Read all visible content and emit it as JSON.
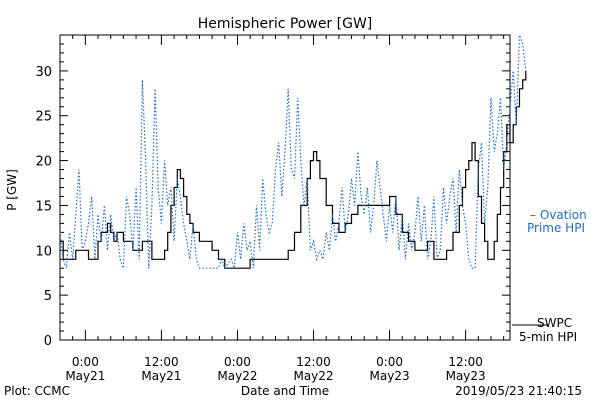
{
  "chart_data": {
    "type": "line",
    "title": "Hemispheric Power [GW]",
    "ylabel": "P [GW]",
    "xlabel": "Date and Time",
    "ylim": [
      0,
      34
    ],
    "yticks": [
      0,
      5,
      10,
      15,
      20,
      25,
      30
    ],
    "xlim": [
      -4,
      67
    ],
    "xticks": [
      {
        "hour": 0,
        "time": "0:00",
        "date": "May21"
      },
      {
        "hour": 12,
        "time": "12:00",
        "date": "May21"
      },
      {
        "hour": 24,
        "time": "0:00",
        "date": "May22"
      },
      {
        "hour": 36,
        "time": "12:00",
        "date": "May22"
      },
      {
        "hour": 48,
        "time": "0:00",
        "date": "May23"
      },
      {
        "hour": 60,
        "time": "12:00",
        "date": "May23"
      }
    ],
    "series": [
      {
        "name": "SWPC 5-min HPI",
        "color": "#000000",
        "style": "solid-step",
        "points": [
          [
            -4,
            11
          ],
          [
            -3.5,
            9
          ],
          [
            -2,
            9
          ],
          [
            -1.5,
            10
          ],
          [
            0,
            10
          ],
          [
            0.5,
            9
          ],
          [
            1.5,
            9
          ],
          [
            2,
            11
          ],
          [
            2.5,
            12
          ],
          [
            3.5,
            13
          ],
          [
            4,
            12
          ],
          [
            4.5,
            11
          ],
          [
            5,
            12
          ],
          [
            6,
            11
          ],
          [
            7,
            11
          ],
          [
            7.5,
            10
          ],
          [
            8.5,
            10
          ],
          [
            9,
            11
          ],
          [
            10,
            11
          ],
          [
            10.5,
            9
          ],
          [
            11,
            9
          ],
          [
            12.5,
            10
          ],
          [
            13,
            12
          ],
          [
            13.5,
            15
          ],
          [
            14,
            17
          ],
          [
            14.5,
            19
          ],
          [
            15,
            18
          ],
          [
            15.5,
            16
          ],
          [
            16,
            14
          ],
          [
            16.5,
            13
          ],
          [
            17,
            12
          ],
          [
            18,
            11
          ],
          [
            19,
            11
          ],
          [
            20,
            10
          ],
          [
            21,
            9
          ],
          [
            22,
            8
          ],
          [
            24,
            8
          ],
          [
            25,
            8
          ],
          [
            26,
            9
          ],
          [
            29,
            9
          ],
          [
            31,
            9
          ],
          [
            32,
            10
          ],
          [
            33,
            12
          ],
          [
            34,
            15
          ],
          [
            35,
            18
          ],
          [
            35.5,
            20
          ],
          [
            36,
            21
          ],
          [
            36.5,
            20
          ],
          [
            37,
            18
          ],
          [
            38,
            15
          ],
          [
            39,
            13
          ],
          [
            40,
            12
          ],
          [
            41,
            13
          ],
          [
            42,
            14
          ],
          [
            43,
            15
          ],
          [
            44,
            15
          ],
          [
            45,
            15
          ],
          [
            46,
            15
          ],
          [
            47,
            15
          ],
          [
            48,
            16
          ],
          [
            49,
            14
          ],
          [
            50,
            12
          ],
          [
            51,
            11
          ],
          [
            52,
            10
          ],
          [
            53,
            10
          ],
          [
            54,
            11
          ],
          [
            55,
            9
          ],
          [
            56,
            9
          ],
          [
            57,
            10
          ],
          [
            58,
            12
          ],
          [
            59,
            15
          ],
          [
            59.5,
            17
          ],
          [
            60,
            19
          ],
          [
            60.5,
            20
          ],
          [
            61,
            22
          ],
          [
            61.5,
            20
          ],
          [
            62,
            16
          ],
          [
            62.5,
            13
          ],
          [
            63,
            11
          ],
          [
            63.5,
            9
          ],
          [
            64,
            9
          ],
          [
            64.5,
            11
          ],
          [
            65,
            14
          ],
          [
            65.5,
            17
          ],
          [
            66,
            21
          ],
          [
            66.5,
            24
          ],
          [
            67,
            22
          ],
          [
            67.5,
            24
          ],
          [
            68,
            26
          ],
          [
            68.5,
            28
          ],
          [
            69,
            29
          ],
          [
            69.5,
            30
          ]
        ]
      },
      {
        "name": "Ovation Prime HPI",
        "color": "#1f6fd0",
        "style": "dotted",
        "points": [
          [
            -4,
            12
          ],
          [
            -3.5,
            9
          ],
          [
            -3,
            8
          ],
          [
            -2.5,
            12
          ],
          [
            -2,
            9
          ],
          [
            -1.5,
            14
          ],
          [
            -1,
            19
          ],
          [
            -0.5,
            10
          ],
          [
            0,
            11
          ],
          [
            0.5,
            13
          ],
          [
            1,
            16
          ],
          [
            1.5,
            9
          ],
          [
            2,
            14
          ],
          [
            2.5,
            11
          ],
          [
            3,
            15
          ],
          [
            3.5,
            10
          ],
          [
            4,
            14
          ],
          [
            4.5,
            11
          ],
          [
            5,
            12
          ],
          [
            5.5,
            9
          ],
          [
            6,
            8
          ],
          [
            6.5,
            16
          ],
          [
            7,
            14
          ],
          [
            7.5,
            10
          ],
          [
            8,
            17
          ],
          [
            8.5,
            9
          ],
          [
            9,
            29
          ],
          [
            9.5,
            20
          ],
          [
            10,
            8
          ],
          [
            10.5,
            15
          ],
          [
            11,
            28
          ],
          [
            11.5,
            17
          ],
          [
            12,
            13
          ],
          [
            12.5,
            20
          ],
          [
            13,
            15
          ],
          [
            13.5,
            17
          ],
          [
            14,
            11
          ],
          [
            14.5,
            18
          ],
          [
            15,
            16
          ],
          [
            15.5,
            13
          ],
          [
            16,
            11
          ],
          [
            16.5,
            9
          ],
          [
            17,
            13
          ],
          [
            17.5,
            9
          ],
          [
            18,
            8
          ],
          [
            19,
            8
          ],
          [
            20,
            8
          ],
          [
            21,
            8
          ],
          [
            21.5,
            9
          ],
          [
            22,
            8
          ],
          [
            23,
            9
          ],
          [
            23.5,
            8
          ],
          [
            24,
            12
          ],
          [
            24.5,
            9
          ],
          [
            25,
            13
          ],
          [
            25.5,
            10
          ],
          [
            26,
            11
          ],
          [
            26.5,
            8
          ],
          [
            27,
            15
          ],
          [
            27.5,
            10
          ],
          [
            28,
            18
          ],
          [
            28.5,
            14
          ],
          [
            29,
            12
          ],
          [
            29.5,
            13
          ],
          [
            30,
            19
          ],
          [
            30.5,
            22
          ],
          [
            31,
            16
          ],
          [
            31.5,
            21
          ],
          [
            32,
            28
          ],
          [
            32.5,
            19
          ],
          [
            33,
            18
          ],
          [
            33.5,
            27
          ],
          [
            34,
            20
          ],
          [
            34.5,
            15
          ],
          [
            35,
            18
          ],
          [
            35.5,
            10
          ],
          [
            36,
            11
          ],
          [
            36.5,
            9
          ],
          [
            37,
            10
          ],
          [
            37.5,
            9
          ],
          [
            38,
            12
          ],
          [
            38.5,
            10
          ],
          [
            39,
            14
          ],
          [
            39.5,
            11
          ],
          [
            40,
            13
          ],
          [
            40.5,
            17
          ],
          [
            41,
            12
          ],
          [
            41.5,
            14
          ],
          [
            42,
            18
          ],
          [
            42.5,
            15
          ],
          [
            43,
            21
          ],
          [
            43.5,
            16
          ],
          [
            44,
            14
          ],
          [
            44.5,
            17
          ],
          [
            45,
            12
          ],
          [
            45.5,
            15
          ],
          [
            46,
            20
          ],
          [
            46.5,
            17
          ],
          [
            47,
            14
          ],
          [
            47.5,
            11
          ],
          [
            48,
            15
          ],
          [
            48.5,
            12
          ],
          [
            49,
            16
          ],
          [
            49.5,
            10
          ],
          [
            50,
            14
          ],
          [
            50.5,
            9
          ],
          [
            51,
            13
          ],
          [
            51.5,
            10
          ],
          [
            52,
            12
          ],
          [
            52.5,
            16
          ],
          [
            53,
            11
          ],
          [
            53.5,
            15
          ],
          [
            54,
            9
          ],
          [
            54.5,
            11
          ],
          [
            55,
            16
          ],
          [
            55.5,
            9
          ],
          [
            56,
            10
          ],
          [
            56.5,
            17
          ],
          [
            57,
            13
          ],
          [
            57.5,
            16
          ],
          [
            58,
            18
          ],
          [
            58.5,
            12
          ],
          [
            59,
            19
          ],
          [
            59.5,
            15
          ],
          [
            60,
            13
          ],
          [
            60.5,
            9
          ],
          [
            61,
            8
          ],
          [
            61.5,
            8
          ],
          [
            62,
            19
          ],
          [
            62.5,
            22
          ],
          [
            63,
            13
          ],
          [
            63.5,
            17
          ],
          [
            64,
            27
          ],
          [
            64.5,
            21
          ],
          [
            65,
            23
          ],
          [
            65.5,
            27
          ],
          [
            66,
            19
          ],
          [
            66.5,
            22
          ],
          [
            67,
            26
          ],
          [
            67.5,
            30
          ],
          [
            68,
            24
          ],
          [
            68.5,
            34
          ],
          [
            69,
            33
          ],
          [
            69.5,
            30
          ]
        ]
      }
    ]
  },
  "legend": {
    "ovation_line1": "– Ovation",
    "ovation_line2": "Prime HPI",
    "swpc_line1": "SWPC",
    "swpc_line2": "5-min HPI"
  },
  "footer": {
    "plot_credit": "Plot: CCMC",
    "timestamp": "2019/05/23 21:40:15"
  }
}
